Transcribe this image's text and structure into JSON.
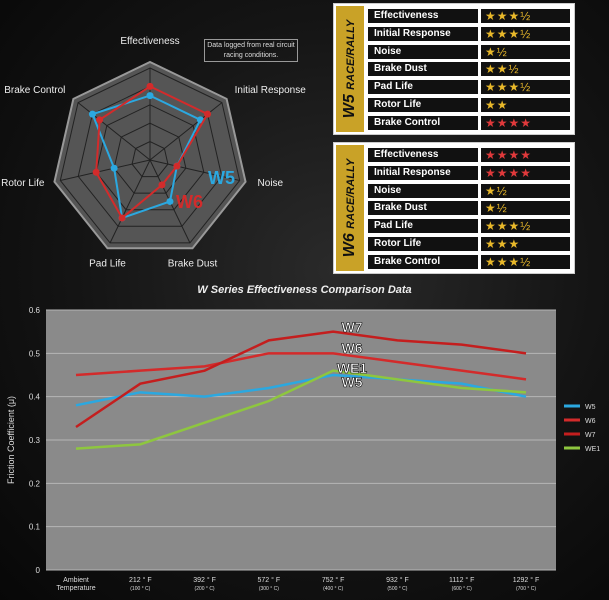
{
  "radar": {
    "axes": [
      "Effectiveness",
      "Initial Response",
      "Noise",
      "Brake Dust",
      "Pad Life",
      "Rotor Life",
      "Brake Control"
    ],
    "series": [
      {
        "name": "W5",
        "color": "#2ba8e0",
        "values": [
          3.5,
          3.5,
          1.5,
          2.5,
          3.5,
          2.0,
          4.0
        ]
      },
      {
        "name": "W6",
        "color": "#d32b2b",
        "values": [
          4.0,
          4.0,
          1.5,
          1.5,
          3.5,
          3.0,
          3.5
        ]
      }
    ],
    "max": 5,
    "note": "Data logged from real circuit racing conditions."
  },
  "panels": [
    {
      "series": "W5",
      "sub": "RACE/RALLY",
      "rows": [
        {
          "label": "Effectiveness",
          "stars": "★★★½",
          "red": false
        },
        {
          "label": "Initial Response",
          "stars": "★★★½",
          "red": false
        },
        {
          "label": "Noise",
          "stars": "★½",
          "red": false
        },
        {
          "label": "Brake Dust",
          "stars": "★★½",
          "red": false
        },
        {
          "label": "Pad Life",
          "stars": "★★★½",
          "red": false
        },
        {
          "label": "Rotor Life",
          "stars": "★★",
          "red": false
        },
        {
          "label": "Brake Control",
          "stars": "★★★★",
          "red": true
        }
      ]
    },
    {
      "series": "W6",
      "sub": "RACE/RALLY",
      "rows": [
        {
          "label": "Effectiveness",
          "stars": "★★★★",
          "red": true
        },
        {
          "label": "Initial Response",
          "stars": "★★★★",
          "red": true
        },
        {
          "label": "Noise",
          "stars": "★½",
          "red": false
        },
        {
          "label": "Brake Dust",
          "stars": "★½",
          "red": false
        },
        {
          "label": "Pad Life",
          "stars": "★★★½",
          "red": false
        },
        {
          "label": "Rotor Life",
          "stars": "★★★",
          "red": false
        },
        {
          "label": "Brake Control",
          "stars": "★★★½",
          "red": false
        }
      ]
    }
  ],
  "chart_data": {
    "type": "line",
    "title": "W Series Effectiveness Comparison Data",
    "ylabel": "Friction Coefficient (μ)",
    "xlabel": "",
    "ylim": [
      0,
      0.6
    ],
    "yticks": [
      "0",
      "0.1",
      "0.2",
      "0.3",
      "0.4",
      "0.5",
      "0.6"
    ],
    "categories": [
      "Ambient Temperature",
      "212 ° F",
      "392 ° F",
      "572 ° F",
      "752 ° F",
      "932 ° F",
      "1112 ° F",
      "1292 ° F"
    ],
    "sublabels": [
      "",
      "(100 ° C)",
      "(200 ° C)",
      "(300 ° C)",
      "(400 ° C)",
      "(500 ° C)",
      "(600 ° C)",
      "(700 ° C)"
    ],
    "series": [
      {
        "name": "W5",
        "color": "#2ba8e0",
        "values": [
          0.38,
          0.41,
          0.4,
          0.42,
          0.45,
          0.44,
          0.43,
          0.4
        ]
      },
      {
        "name": "W6",
        "color": "#d32b2b",
        "values": [
          0.45,
          0.46,
          0.47,
          0.5,
          0.5,
          0.48,
          0.46,
          0.44
        ]
      },
      {
        "name": "W7",
        "color": "#c41e1e",
        "values": [
          0.33,
          0.43,
          0.46,
          0.53,
          0.55,
          0.53,
          0.52,
          0.5
        ]
      },
      {
        "name": "WE1",
        "color": "#8ec63f",
        "values": [
          0.28,
          0.29,
          0.34,
          0.39,
          0.46,
          0.44,
          0.42,
          0.41
        ]
      }
    ],
    "annotations": [
      "W7",
      "W6",
      "WE1",
      "W5"
    ],
    "grid": true,
    "legend": "right"
  }
}
